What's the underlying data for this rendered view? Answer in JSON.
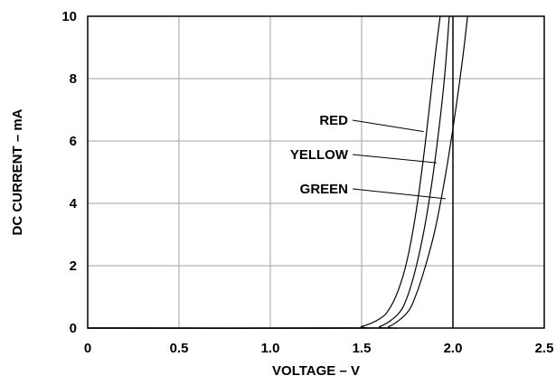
{
  "chart_data": {
    "type": "line",
    "xlabel": "VOLTAGE – V",
    "ylabel": "DC CURRENT – mA",
    "xlim": [
      0,
      2.5
    ],
    "ylim": [
      0,
      10
    ],
    "x_ticks": [
      "0",
      "0.5",
      "1.0",
      "1.5",
      "2.0",
      "2.5"
    ],
    "y_ticks": [
      "0",
      "2",
      "4",
      "6",
      "8",
      "10"
    ],
    "grid": true,
    "legend": "inline-labels",
    "series": [
      {
        "name": "RED",
        "points": [
          [
            0,
            0
          ],
          [
            1.4,
            0
          ],
          [
            1.5,
            0.05
          ],
          [
            1.6,
            0.3
          ],
          [
            1.65,
            0.6
          ],
          [
            1.7,
            1.2
          ],
          [
            1.75,
            2.2
          ],
          [
            1.8,
            3.8
          ],
          [
            1.85,
            6.0
          ],
          [
            1.9,
            8.6
          ],
          [
            1.93,
            10.0
          ]
        ],
        "label_point": [
          1.84,
          6.3
        ]
      },
      {
        "name": "YELLOW",
        "points": [
          [
            0,
            0
          ],
          [
            1.5,
            0
          ],
          [
            1.6,
            0.05
          ],
          [
            1.7,
            0.45
          ],
          [
            1.75,
            1.0
          ],
          [
            1.8,
            2.0
          ],
          [
            1.85,
            3.4
          ],
          [
            1.9,
            5.3
          ],
          [
            1.95,
            7.8
          ],
          [
            1.98,
            10.0
          ]
        ],
        "label_point": [
          1.91,
          5.3
        ]
      },
      {
        "name": "GREEN",
        "points": [
          [
            0,
            0
          ],
          [
            1.55,
            0
          ],
          [
            1.65,
            0.05
          ],
          [
            1.75,
            0.5
          ],
          [
            1.8,
            1.1
          ],
          [
            1.85,
            2.0
          ],
          [
            1.9,
            3.1
          ],
          [
            1.95,
            4.6
          ],
          [
            2.0,
            6.4
          ],
          [
            2.05,
            8.5
          ],
          [
            2.08,
            10.0
          ]
        ],
        "label_point": [
          1.96,
          4.15
        ]
      }
    ],
    "reference_line": {
      "x": 2.0
    }
  }
}
